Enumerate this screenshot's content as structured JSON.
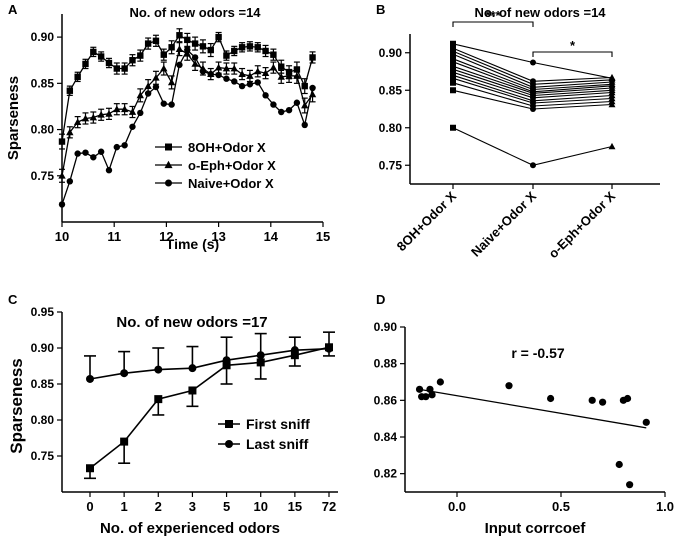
{
  "figure": {
    "width": 680,
    "height": 543
  },
  "chart_data": [
    {
      "id": "A",
      "panel_label": "A",
      "type": "line",
      "title": "No. of new odors =14",
      "xlabel": "Time (s)",
      "ylabel": "Sparseness",
      "xlim": [
        10,
        15
      ],
      "ylim": [
        0.7,
        0.925
      ],
      "xticks": [
        10,
        11,
        12,
        13,
        14,
        15
      ],
      "yticks": [
        0.75,
        0.8,
        0.85,
        0.9
      ],
      "ytick_labels": [
        "0.75",
        "0.80",
        "0.85",
        "0.90"
      ],
      "legend": "lower-right",
      "series": [
        {
          "name": "8OH+Odor X",
          "marker": "square",
          "x": [
            10.0,
            10.15,
            10.3,
            10.45,
            10.6,
            10.75,
            10.9,
            11.05,
            11.2,
            11.35,
            11.5,
            11.65,
            11.8,
            11.95,
            12.1,
            12.25,
            12.4,
            12.55,
            12.7,
            12.85,
            13.0,
            13.15,
            13.3,
            13.45,
            13.6,
            13.75,
            13.9,
            14.05,
            14.2,
            14.35,
            14.5,
            14.65,
            14.8
          ],
          "y": [
            0.787,
            0.842,
            0.857,
            0.871,
            0.884,
            0.879,
            0.872,
            0.866,
            0.866,
            0.875,
            0.88,
            0.893,
            0.896,
            0.881,
            0.889,
            0.902,
            0.897,
            0.893,
            0.89,
            0.886,
            0.9,
            0.88,
            0.885,
            0.889,
            0.89,
            0.889,
            0.885,
            0.881,
            0.868,
            0.862,
            0.865,
            0.847,
            0.878
          ],
          "err": [
            0.008,
            0.005,
            0.005,
            0.005,
            0.005,
            0.005,
            0.005,
            0.006,
            0.006,
            0.006,
            0.006,
            0.006,
            0.006,
            0.006,
            0.007,
            0.007,
            0.007,
            0.007,
            0.007,
            0.007,
            0.005,
            0.005,
            0.005,
            0.005,
            0.005,
            0.005,
            0.006,
            0.006,
            0.007,
            0.007,
            0.008,
            0.008,
            0.006
          ]
        },
        {
          "name": "o-Eph+Odor X",
          "marker": "triangle",
          "x": [
            10.0,
            10.15,
            10.3,
            10.45,
            10.6,
            10.75,
            10.9,
            11.05,
            11.2,
            11.35,
            11.5,
            11.65,
            11.8,
            11.95,
            12.1,
            12.25,
            12.4,
            12.55,
            12.7,
            12.85,
            13.0,
            13.15,
            13.3,
            13.45,
            13.6,
            13.75,
            13.9,
            14.05,
            14.2,
            14.35,
            14.5,
            14.65,
            14.8
          ],
          "y": [
            0.75,
            0.797,
            0.808,
            0.812,
            0.813,
            0.816,
            0.817,
            0.822,
            0.822,
            0.819,
            0.837,
            0.847,
            0.856,
            0.866,
            0.851,
            0.887,
            0.882,
            0.871,
            0.866,
            0.86,
            0.867,
            0.866,
            0.866,
            0.86,
            0.858,
            0.863,
            0.861,
            0.867,
            0.857,
            0.858,
            0.858,
            0.826,
            0.838
          ],
          "err": [
            0.007,
            0.006,
            0.006,
            0.006,
            0.006,
            0.006,
            0.006,
            0.006,
            0.006,
            0.006,
            0.007,
            0.007,
            0.007,
            0.007,
            0.007,
            0.007,
            0.007,
            0.007,
            0.007,
            0.006,
            0.006,
            0.006,
            0.006,
            0.006,
            0.006,
            0.006,
            0.006,
            0.006,
            0.007,
            0.007,
            0.008,
            0.008,
            0.008
          ]
        },
        {
          "name": "Naive+Odor X",
          "marker": "circle",
          "x": [
            10.0,
            10.15,
            10.3,
            10.45,
            10.6,
            10.75,
            10.9,
            11.05,
            11.2,
            11.35,
            11.5,
            11.65,
            11.8,
            11.95,
            12.1,
            12.25,
            12.4,
            12.55,
            12.7,
            12.85,
            13.0,
            13.15,
            13.3,
            13.45,
            13.6,
            13.75,
            13.9,
            14.05,
            14.2,
            14.35,
            14.5,
            14.65,
            14.8
          ],
          "y": [
            0.719,
            0.744,
            0.774,
            0.775,
            0.77,
            0.776,
            0.756,
            0.781,
            0.783,
            0.803,
            0.818,
            0.839,
            0.846,
            0.828,
            0.827,
            0.87,
            0.886,
            0.878,
            0.863,
            0.86,
            0.859,
            0.855,
            0.852,
            0.847,
            0.849,
            0.851,
            0.837,
            0.827,
            0.819,
            0.821,
            0.829,
            0.805,
            0.845
          ]
        }
      ]
    },
    {
      "id": "B",
      "panel_label": "B",
      "type": "line",
      "title": "No. of new odors =14",
      "categories": [
        "8OH+Odor X",
        "Naive+Odor X",
        "o-Eph+Odor X"
      ],
      "ylim": [
        0.725,
        0.925
      ],
      "yticks": [
        0.75,
        0.8,
        0.85,
        0.9
      ],
      "ytick_labels": [
        "0.75",
        "0.80",
        "0.85",
        "0.90"
      ],
      "markers": [
        "square",
        "circle",
        "triangle"
      ],
      "paired_lines": [
        [
          0.912,
          0.887,
          0.866
        ],
        [
          0.906,
          0.862,
          0.867
        ],
        [
          0.902,
          0.858,
          0.864
        ],
        [
          0.898,
          0.854,
          0.861
        ],
        [
          0.892,
          0.851,
          0.858
        ],
        [
          0.888,
          0.848,
          0.856
        ],
        [
          0.882,
          0.846,
          0.853
        ],
        [
          0.878,
          0.843,
          0.85
        ],
        [
          0.874,
          0.84,
          0.847
        ],
        [
          0.87,
          0.836,
          0.843
        ],
        [
          0.866,
          0.833,
          0.839
        ],
        [
          0.86,
          0.829,
          0.835
        ],
        [
          0.85,
          0.825,
          0.831
        ],
        [
          0.8,
          0.75,
          0.775
        ]
      ],
      "significance": [
        {
          "from": 0,
          "to": 1,
          "label": "***"
        },
        {
          "from": 1,
          "to": 2,
          "label": "*"
        }
      ]
    },
    {
      "id": "C",
      "panel_label": "C",
      "type": "line",
      "title": "No. of new odors =17",
      "xlabel": "No.  of experienced odors",
      "ylabel": "Sparseness",
      "categories": [
        "0",
        "1",
        "2",
        "3",
        "5",
        "10",
        "15",
        "72"
      ],
      "ylim": [
        0.7,
        0.95
      ],
      "yticks": [
        0.75,
        0.8,
        0.85,
        0.9,
        0.95
      ],
      "ytick_labels": [
        "0.75",
        "0.80",
        "0.85",
        "0.90",
        "0.95"
      ],
      "legend": "lower-right",
      "series": [
        {
          "name": "First sniff",
          "marker": "square",
          "values": [
            0.733,
            0.77,
            0.829,
            0.841,
            0.876,
            0.88,
            0.89,
            0.901
          ],
          "err_minus": [
            0.014,
            0.03,
            0.022,
            0.022,
            0.026,
            0.023,
            0.015,
            0.012
          ]
        },
        {
          "name": "Last sniff",
          "marker": "circle",
          "values": [
            0.857,
            0.865,
            0.87,
            0.872,
            0.883,
            0.89,
            0.897,
            0.899
          ],
          "err_plus": [
            0.032,
            0.03,
            0.03,
            0.03,
            0.032,
            0.03,
            0.018,
            0.023
          ]
        }
      ]
    },
    {
      "id": "D",
      "panel_label": "D",
      "type": "scatter",
      "annotation": "r = -0.57",
      "xlabel": "Input corrcoef",
      "xlim": [
        -0.25,
        1.0
      ],
      "ylim": [
        0.81,
        0.9
      ],
      "xticks": [
        0.0,
        0.5,
        1.0
      ],
      "xtick_labels": [
        "0.0",
        "0.5",
        "1.0"
      ],
      "yticks": [
        0.82,
        0.84,
        0.86,
        0.88,
        0.9
      ],
      "ytick_labels": [
        "0.82",
        "0.84",
        "0.86",
        "0.88",
        "0.90"
      ],
      "points": [
        {
          "x": -0.18,
          "y": 0.866
        },
        {
          "x": -0.17,
          "y": 0.862
        },
        {
          "x": -0.15,
          "y": 0.862
        },
        {
          "x": -0.13,
          "y": 0.866
        },
        {
          "x": -0.12,
          "y": 0.863
        },
        {
          "x": -0.08,
          "y": 0.87
        },
        {
          "x": 0.25,
          "y": 0.868
        },
        {
          "x": 0.45,
          "y": 0.861
        },
        {
          "x": 0.65,
          "y": 0.86
        },
        {
          "x": 0.7,
          "y": 0.859
        },
        {
          "x": 0.78,
          "y": 0.825
        },
        {
          "x": 0.8,
          "y": 0.86
        },
        {
          "x": 0.82,
          "y": 0.861
        },
        {
          "x": 0.83,
          "y": 0.814
        },
        {
          "x": 0.91,
          "y": 0.848
        }
      ],
      "fit_line": {
        "x": [
          -0.18,
          0.91
        ],
        "y": [
          0.866,
          0.845
        ]
      }
    }
  ]
}
